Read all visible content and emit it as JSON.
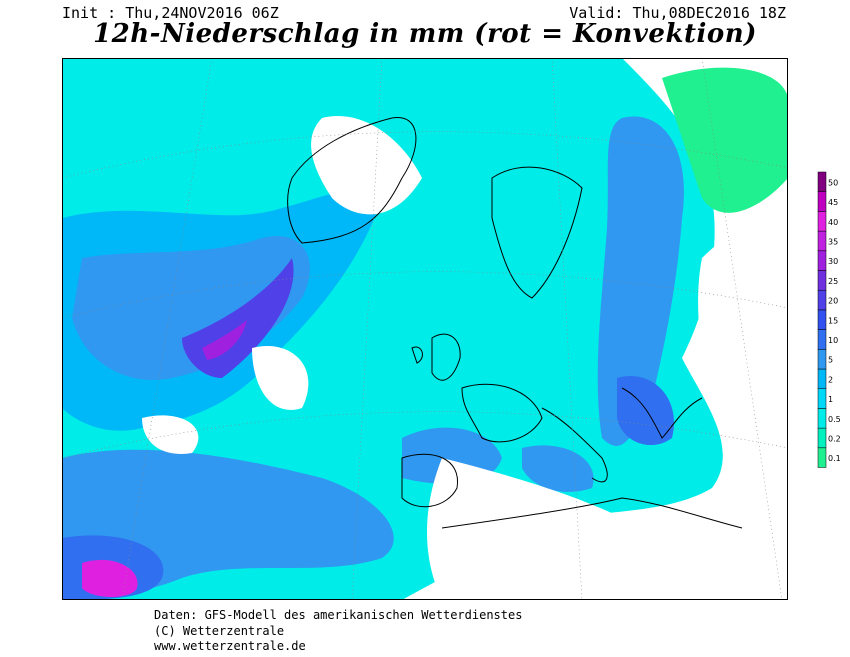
{
  "header": {
    "init": "Init : Thu,24NOV2016 06Z",
    "valid": "Valid: Thu,08DEC2016 18Z",
    "title": "12h-Niederschlag in mm (rot = Konvektion)"
  },
  "legend": {
    "levels": [
      {
        "label": "0.1",
        "color": "#20f090"
      },
      {
        "label": "0.2",
        "color": "#00f0c0"
      },
      {
        "label": "0.5",
        "color": "#00ece8"
      },
      {
        "label": "1",
        "color": "#00d8f8"
      },
      {
        "label": "2",
        "color": "#00b8f8"
      },
      {
        "label": "5",
        "color": "#3098f0"
      },
      {
        "label": "10",
        "color": "#3070f0"
      },
      {
        "label": "15",
        "color": "#3050f0"
      },
      {
        "label": "20",
        "color": "#5040e8"
      },
      {
        "label": "25",
        "color": "#7030e0"
      },
      {
        "label": "30",
        "color": "#a020e0"
      },
      {
        "label": "35",
        "color": "#c020e0"
      },
      {
        "label": "40",
        "color": "#e020e0"
      },
      {
        "label": "45",
        "color": "#c000c0"
      },
      {
        "label": "50",
        "color": "#800080"
      }
    ]
  },
  "footer": {
    "lines": [
      "Daten: GFS-Modell des amerikanischen Wetterdienstes",
      "(C) Wetterzentrale",
      "www.wetterzentrale.de"
    ]
  }
}
